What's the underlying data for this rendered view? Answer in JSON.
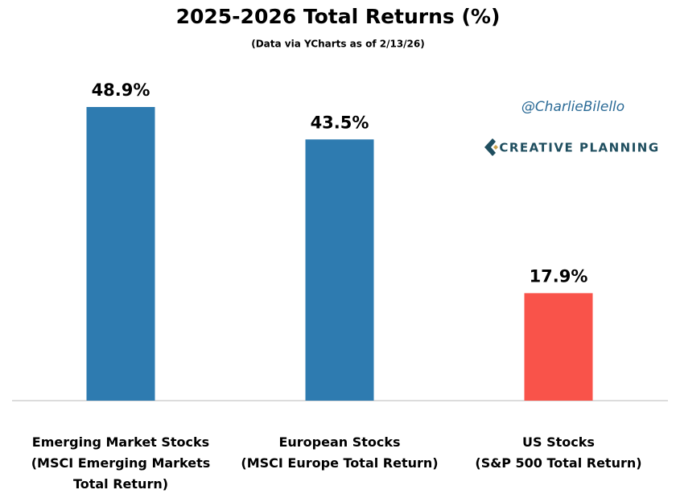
{
  "chart_data": {
    "type": "bar",
    "title": "2025-2026 Total Returns (%)",
    "subtitle": "(Data via YCharts as of 2/13/26)",
    "categories": [
      "Emerging Market Stocks\n(MSCI Emerging Markets\nTotal Return)",
      "European Stocks\n(MSCI Europe Total Return)",
      "US Stocks\n(S&P 500 Total Return)"
    ],
    "values": [
      48.9,
      43.5,
      17.9
    ],
    "value_labels": [
      "48.9%",
      "43.5%",
      "17.9%"
    ],
    "colors": [
      "#2e7bb0",
      "#2e7bb0",
      "#f9534a"
    ],
    "annotations": [
      "@CharlieBilello",
      "CREATIVE PLANNING"
    ]
  }
}
